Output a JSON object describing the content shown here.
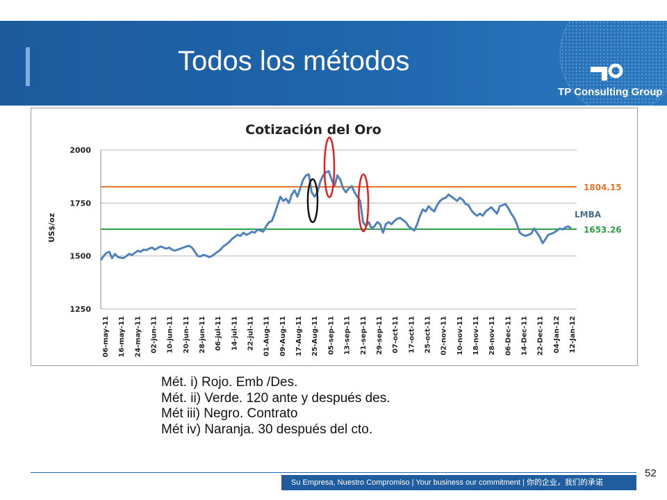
{
  "slide": {
    "title": "Todos los métodos",
    "logo_text": "TP Consulting Group",
    "page_number": "52",
    "footer_tagline": "Su Empresa, Nuestro Compromiso | Your business our commitment | 你的企业，我们的承诺"
  },
  "notes": [
    "Mét. i) Rojo. Emb /Des.",
    "Mét. ii) Verde. 120 ante y después des.",
    "Mét iii) Negro. Contrato",
    "Mét iv) Naranja. 30 después del cto."
  ],
  "colors": {
    "header": "#1f66ad",
    "series": "#4f81bd",
    "orange": "#e8742a",
    "green": "#2ea043",
    "red": "#e02020",
    "black": "#111111"
  },
  "chart_data": {
    "type": "line",
    "title": "Cotización del Oro",
    "ylabel": "US$/oz",
    "xlabel": "",
    "ylim": [
      1250,
      2000
    ],
    "yticks": [
      2000,
      1750,
      1500,
      1250
    ],
    "grid": true,
    "x_tick_labels": [
      "06-may-11",
      "16-may-11",
      "24-may-11",
      "02-jun-11",
      "10-jun-11",
      "20-jun-11",
      "28-jun-11",
      "06-jul-11",
      "14-jul-11",
      "22-jul-11",
      "01-Aug-11",
      "09-Aug-11",
      "17-Aug-11",
      "25-Aug-11",
      "05-sep-11",
      "13-sep-11",
      "21-sep-11",
      "29-sep-11",
      "07-oct-11",
      "17-oct-11",
      "25-oct-11",
      "02-nov-11",
      "10-nov-11",
      "18-nov-11",
      "28-nov-11",
      "06-Dec-11",
      "14-Dec-11",
      "22-Dec-11",
      "04-Jan-12",
      "12-Jan-12"
    ],
    "series": [
      {
        "name": "LMBA",
        "values": [
          1480,
          1500,
          1515,
          1520,
          1490,
          1510,
          1495,
          1492,
          1490,
          1500,
          1510,
          1505,
          1515,
          1525,
          1520,
          1530,
          1528,
          1535,
          1540,
          1530,
          1538,
          1545,
          1540,
          1535,
          1540,
          1530,
          1525,
          1530,
          1535,
          1540,
          1545,
          1548,
          1540,
          1520,
          1500,
          1498,
          1505,
          1502,
          1495,
          1500,
          1510,
          1520,
          1530,
          1545,
          1555,
          1565,
          1580,
          1590,
          1600,
          1595,
          1610,
          1600,
          1605,
          1615,
          1610,
          1625,
          1620,
          1615,
          1640,
          1660,
          1665,
          1700,
          1740,
          1780,
          1760,
          1770,
          1750,
          1790,
          1810,
          1780,
          1820,
          1860,
          1880,
          1885,
          1800,
          1780,
          1800,
          1850,
          1880,
          1895,
          1900,
          1860,
          1830,
          1880,
          1860,
          1820,
          1800,
          1820,
          1830,
          1800,
          1780,
          1760,
          1660,
          1640,
          1660,
          1630,
          1640,
          1660,
          1650,
          1610,
          1650,
          1660,
          1650,
          1665,
          1675,
          1680,
          1670,
          1660,
          1640,
          1630,
          1620,
          1650,
          1690,
          1720,
          1710,
          1735,
          1720,
          1710,
          1740,
          1760,
          1770,
          1775,
          1790,
          1780,
          1770,
          1760,
          1775,
          1765,
          1745,
          1740,
          1715,
          1700,
          1690,
          1700,
          1690,
          1710,
          1720,
          1730,
          1715,
          1700,
          1735,
          1740,
          1745,
          1725,
          1700,
          1680,
          1650,
          1610,
          1600,
          1595,
          1600,
          1605,
          1630,
          1610,
          1590,
          1560,
          1580,
          1600,
          1605,
          1610,
          1620,
          1630,
          1625,
          1635,
          1640,
          1630
        ]
      }
    ],
    "reference_lines": [
      {
        "label": "1804.15",
        "value": 1804.15,
        "color": "orange"
      },
      {
        "label": "1653.26",
        "value": 1653.26,
        "color": "green"
      }
    ],
    "annotations": [
      {
        "shape": "ellipse",
        "color": "black",
        "x_label": "25-Aug-11"
      },
      {
        "shape": "ellipse",
        "color": "red",
        "x_label": "05-sep-11"
      },
      {
        "shape": "ellipse",
        "color": "red",
        "x_label": "21-sep-11"
      }
    ]
  }
}
